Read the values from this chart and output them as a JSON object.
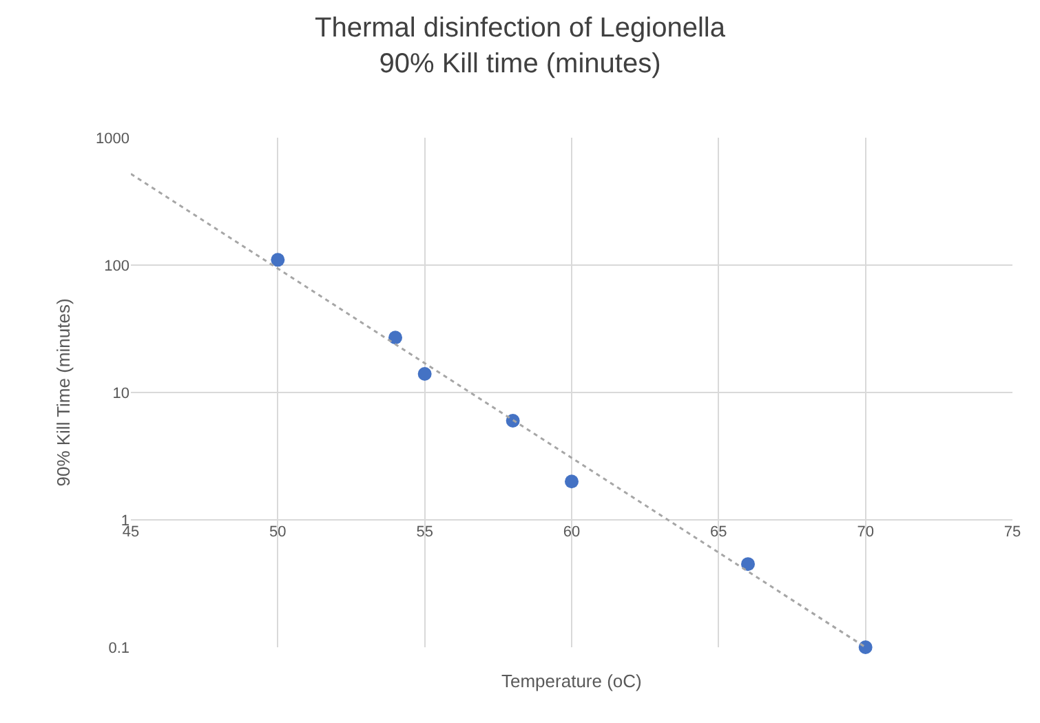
{
  "chart_data": {
    "type": "scatter",
    "title": "Thermal disinfection of Legionella\n90% Kill time (minutes)",
    "xlabel": "Temperature (oC)",
    "ylabel": "90% Kill Time (minutes)",
    "xlim": [
      45,
      75
    ],
    "xticks": [
      45,
      50,
      55,
      60,
      65,
      70,
      75
    ],
    "ylim": [
      0.1,
      1000
    ],
    "yticks": [
      0.1,
      1,
      10,
      100,
      1000
    ],
    "log": "y",
    "grid": true,
    "series": [
      {
        "color": "#4472c4",
        "marker": "circle",
        "x": [
          50,
          54,
          55,
          58,
          60,
          66,
          70
        ],
        "values": [
          110,
          27,
          14,
          6,
          2,
          0.45,
          0.1
        ]
      },
      {
        "type": "line",
        "color": "#a6a6a6",
        "marker": "none",
        "line_style": "dotted",
        "x": [
          45,
          70
        ],
        "values": [
          520,
          0.1
        ]
      }
    ]
  }
}
